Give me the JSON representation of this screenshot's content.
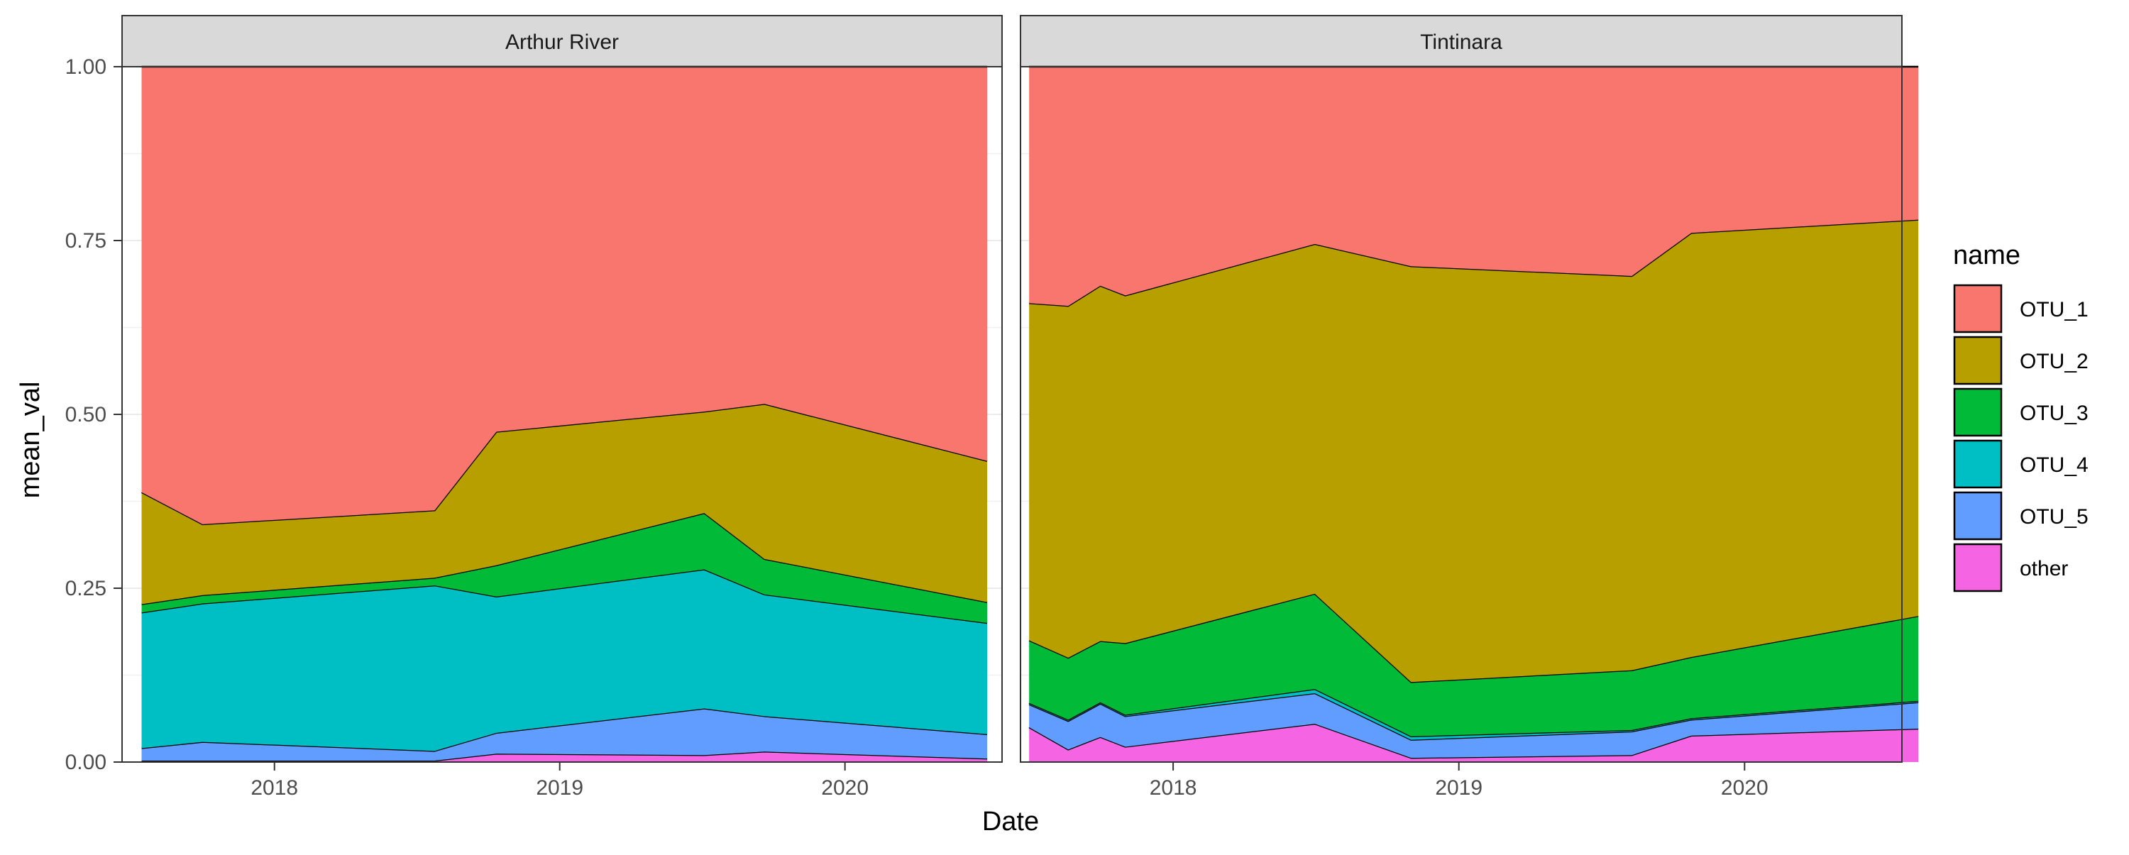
{
  "chart_data": {
    "type": "area",
    "stacked": true,
    "xlabel": "Date",
    "ylabel": "mean_val",
    "ylim": [
      0,
      1
    ],
    "yticks": [
      0,
      0.25,
      0.5,
      0.75,
      1
    ],
    "ytick_labels": [
      "0.00",
      "0.25",
      "0.50",
      "0.75",
      "1.00"
    ],
    "xticks": [
      "2018-01-01",
      "2019-01-01",
      "2020-01-01"
    ],
    "xtick_labels": [
      "2018",
      "2019",
      "2020"
    ],
    "xlim": [
      "2017-06-20",
      "2020-07-20"
    ],
    "grid": true,
    "legend": {
      "title": "name",
      "placement": "right",
      "entries": [
        "OTU_1",
        "OTU_2",
        "OTU_3",
        "OTU_4",
        "OTU_5",
        "other"
      ]
    },
    "series_order_bottom_to_top": [
      "other",
      "OTU_5",
      "OTU_4",
      "OTU_3",
      "OTU_2",
      "OTU_1"
    ],
    "colors": {
      "OTU_1": "#F8766D",
      "OTU_2": "#B79F00",
      "OTU_3": "#00BA38",
      "OTU_4": "#00BFC4",
      "OTU_5": "#619CFF",
      "other": "#F564E3"
    },
    "panels": [
      {
        "title": "Arthur River",
        "x": [
          "2017-07-15",
          "2017-10-01",
          "2018-07-25",
          "2018-10-12",
          "2019-07-05",
          "2019-09-20",
          "2020-07-01"
        ],
        "series": [
          {
            "name": "other",
            "values": [
              0.002,
              0.002,
              0.002,
              0.012,
              0.01,
              0.015,
              0.005
            ]
          },
          {
            "name": "OTU_5",
            "values": [
              0.018,
              0.027,
              0.014,
              0.03,
              0.067,
              0.051,
              0.035
            ]
          },
          {
            "name": "OTU_4",
            "values": [
              0.195,
              0.199,
              0.238,
              0.196,
              0.2,
              0.175,
              0.16
            ]
          },
          {
            "name": "OTU_3",
            "values": [
              0.012,
              0.012,
              0.011,
              0.045,
              0.081,
              0.051,
              0.03
            ]
          },
          {
            "name": "OTU_2",
            "values": [
              0.161,
              0.102,
              0.097,
              0.192,
              0.146,
              0.223,
              0.203
            ]
          },
          {
            "name": "OTU_1",
            "values": [
              0.612,
              0.658,
              0.638,
              0.525,
              0.496,
              0.485,
              0.567
            ]
          }
        ]
      },
      {
        "title": "Tintinara",
        "x": [
          "2017-07-01",
          "2017-08-20",
          "2017-09-30",
          "2017-11-01",
          "2018-07-01",
          "2018-11-01",
          "2019-08-10",
          "2019-10-25",
          "2020-08-10"
        ],
        "series": [
          {
            "name": "other",
            "values": [
              0.05,
              0.018,
              0.036,
              0.022,
              0.055,
              0.006,
              0.01,
              0.038,
              0.048
            ]
          },
          {
            "name": "OTU_5",
            "values": [
              0.033,
              0.041,
              0.048,
              0.044,
              0.044,
              0.026,
              0.034,
              0.023,
              0.038
            ]
          },
          {
            "name": "OTU_4",
            "values": [
              0.002,
              0.002,
              0.002,
              0.002,
              0.006,
              0.005,
              0.002,
              0.002,
              0.002
            ]
          },
          {
            "name": "OTU_3",
            "values": [
              0.09,
              0.089,
              0.088,
              0.103,
              0.137,
              0.078,
              0.086,
              0.088,
              0.122
            ]
          },
          {
            "name": "OTU_2",
            "values": [
              0.485,
              0.506,
              0.511,
              0.5,
              0.503,
              0.598,
              0.567,
              0.61,
              0.57
            ]
          },
          {
            "name": "OTU_1",
            "values": [
              0.34,
              0.344,
              0.315,
              0.329,
              0.255,
              0.287,
              0.301,
              0.239,
              0.22
            ]
          }
        ]
      }
    ]
  }
}
